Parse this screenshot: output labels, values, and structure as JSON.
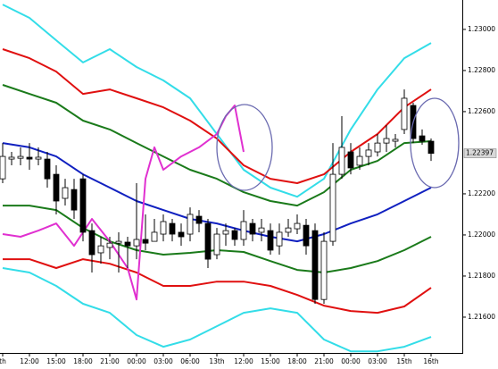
{
  "chart_data": {
    "type": "candlestick",
    "xlim": [
      -0.3,
      51.5
    ],
    "ylim": [
      1.21426,
      1.23143
    ],
    "yticks": [
      {
        "value": 1.23,
        "label": "1.23000"
      },
      {
        "value": 1.228,
        "label": "1.22800"
      },
      {
        "value": 1.226,
        "label": "1.22600"
      },
      {
        "value": 1.222,
        "label": "1.22200"
      },
      {
        "value": 1.22,
        "label": "1.22000"
      },
      {
        "value": 1.218,
        "label": "1.21800"
      },
      {
        "value": 1.216,
        "label": "1.21600"
      }
    ],
    "last_price": 1.22397,
    "xticks": [
      {
        "value": 0,
        "label": "th"
      },
      {
        "value": 3,
        "label": "12:00"
      },
      {
        "value": 6,
        "label": "15:00"
      },
      {
        "value": 9,
        "label": "18:00"
      },
      {
        "value": 12,
        "label": "21:00"
      },
      {
        "value": 15,
        "label": "00:00"
      },
      {
        "value": 18,
        "label": "03:00"
      },
      {
        "value": 21,
        "label": "06:00"
      },
      {
        "value": 24,
        "label": "13th"
      },
      {
        "value": 27,
        "label": "12:00"
      },
      {
        "value": 30,
        "label": "15:00"
      },
      {
        "value": 33,
        "label": "18:00"
      },
      {
        "value": 36,
        "label": "21:00"
      },
      {
        "value": 39,
        "label": "00:00"
      },
      {
        "value": 42,
        "label": "03:00"
      },
      {
        "value": 45,
        "label": "15th"
      },
      {
        "value": 48,
        "label": "16th"
      }
    ],
    "up_color": "#ffffff",
    "down_color": "#000000",
    "open": [
      1.22273,
      1.22369,
      1.22373,
      1.22378,
      1.22369,
      1.22369,
      1.22295,
      1.22178,
      1.22221,
      1.22273,
      1.22021,
      1.21913,
      1.21939,
      1.2196,
      1.21965,
      1.21947,
      1.21978,
      1.21969,
      1.22004,
      1.22056,
      1.22013,
      1.22004,
      1.22091,
      1.22056,
      1.21904,
      1.22004,
      1.22021,
      1.21978,
      1.22056,
      1.22013,
      1.22021,
      1.21947,
      1.22013,
      1.2203,
      1.22047,
      1.22021,
      1.21686,
      1.21969,
      1.22295,
      1.22404,
      1.22339,
      1.22382,
      1.22404,
      1.22447,
      1.22456,
      1.22513,
      1.2263,
      1.22482,
      1.22456
    ],
    "high": [
      1.22447,
      1.22404,
      1.22426,
      1.22447,
      1.22426,
      1.22404,
      1.22339,
      1.22273,
      1.22273,
      1.22295,
      1.22056,
      1.21991,
      1.21991,
      1.22013,
      1.21991,
      1.22252,
      1.221,
      1.22078,
      1.221,
      1.22078,
      1.22056,
      1.22134,
      1.22121,
      1.22078,
      1.22034,
      1.22056,
      1.22034,
      1.22121,
      1.22078,
      1.22078,
      1.22056,
      1.22056,
      1.22078,
      1.221,
      1.22078,
      1.22056,
      1.22013,
      1.22447,
      1.22578,
      1.22447,
      1.22426,
      1.22447,
      1.22491,
      1.22534,
      1.22491,
      1.22708,
      1.22643,
      1.22513,
      1.22469
    ],
    "low": [
      1.22252,
      1.22339,
      1.22339,
      1.22317,
      1.22339,
      1.2223,
      1.221,
      1.22143,
      1.22078,
      1.21969,
      1.21817,
      1.2186,
      1.21882,
      1.21817,
      1.21839,
      1.21882,
      1.21926,
      1.21969,
      1.21969,
      1.21969,
      1.21947,
      1.21969,
      1.22013,
      1.21839,
      1.21882,
      1.21947,
      1.21947,
      1.21947,
      1.21969,
      1.21969,
      1.21904,
      1.21904,
      1.21991,
      1.22004,
      1.21904,
      1.21665,
      1.21665,
      1.21947,
      1.22273,
      1.22295,
      1.22317,
      1.22339,
      1.22382,
      1.22404,
      1.22426,
      1.22491,
      1.22447,
      1.22439,
      1.2236
    ],
    "close": [
      1.22382,
      1.22378,
      1.22382,
      1.22369,
      1.22378,
      1.22273,
      1.22165,
      1.2223,
      1.22121,
      1.22013,
      1.21904,
      1.21947,
      1.2196,
      1.21969,
      1.21947,
      1.21978,
      1.2196,
      1.22013,
      1.22065,
      1.22004,
      1.21991,
      1.221,
      1.22056,
      1.21882,
      1.22004,
      1.22021,
      1.21978,
      1.22065,
      1.22004,
      1.22034,
      1.21926,
      1.22013,
      1.22034,
      1.22056,
      1.21947,
      1.21686,
      1.21969,
      1.22295,
      1.22426,
      1.22326,
      1.22382,
      1.22413,
      1.22447,
      1.22469,
      1.22465,
      1.22665,
      1.22469,
      1.22456,
      1.22397
    ],
    "lines": [
      {
        "color": "#33dde8",
        "x": [
          0,
          3,
          6,
          9,
          12,
          15,
          18,
          21,
          24,
          27,
          30,
          33,
          36,
          39,
          42,
          45,
          48
        ],
        "values": [
          1.23121,
          1.23056,
          1.22947,
          1.22839,
          1.22904,
          1.22817,
          1.22752,
          1.22665,
          1.22491,
          1.22317,
          1.2223,
          1.22186,
          1.22273,
          1.22513,
          1.22708,
          1.2286,
          1.22934
        ]
      },
      {
        "color": "#e01010",
        "x": [
          0,
          3,
          6,
          9,
          12,
          15,
          18,
          21,
          24,
          27,
          30,
          33,
          36,
          39,
          42,
          45,
          48
        ],
        "values": [
          1.22904,
          1.2286,
          1.22795,
          1.22686,
          1.22708,
          1.22665,
          1.22621,
          1.22556,
          1.22469,
          1.22339,
          1.22273,
          1.22252,
          1.22295,
          1.22404,
          1.22491,
          1.22621,
          1.22708
        ]
      },
      {
        "color": "#1a7a1a",
        "x": [
          0,
          3,
          6,
          9,
          12,
          15,
          18,
          21,
          24,
          27,
          30,
          33,
          36,
          39,
          42,
          45,
          48
        ],
        "values": [
          1.2273,
          1.22686,
          1.22643,
          1.22556,
          1.22513,
          1.22447,
          1.22382,
          1.22317,
          1.22273,
          1.22208,
          1.22165,
          1.22143,
          1.22208,
          1.22317,
          1.2236,
          1.22447,
          1.22456
        ]
      },
      {
        "color": "#1020c0",
        "x": [
          0,
          3,
          6,
          9,
          12,
          15,
          18,
          21,
          24,
          27,
          30,
          33,
          36,
          39,
          42,
          45,
          48
        ],
        "values": [
          1.22447,
          1.22426,
          1.22382,
          1.22295,
          1.2223,
          1.22165,
          1.22121,
          1.22078,
          1.22056,
          1.22021,
          1.21991,
          1.21969,
          1.22004,
          1.22056,
          1.221,
          1.22165,
          1.2223
        ]
      },
      {
        "color": "#1a7a1a",
        "x": [
          0,
          3,
          6,
          9,
          12,
          15,
          18,
          21,
          24,
          27,
          30,
          33,
          36,
          39,
          42,
          45,
          48
        ],
        "values": [
          1.22143,
          1.22143,
          1.22121,
          1.22034,
          1.21969,
          1.21926,
          1.21904,
          1.21913,
          1.21926,
          1.21917,
          1.21873,
          1.2183,
          1.21817,
          1.21839,
          1.21873,
          1.21926,
          1.21991
        ]
      },
      {
        "color": "#e01010",
        "x": [
          0,
          3,
          6,
          9,
          12,
          15,
          18,
          21,
          24,
          27,
          30,
          33,
          36,
          39,
          42,
          45,
          48
        ],
        "values": [
          1.21882,
          1.21882,
          1.21839,
          1.21882,
          1.2186,
          1.21817,
          1.21752,
          1.21752,
          1.21773,
          1.21773,
          1.21752,
          1.21708,
          1.21656,
          1.2163,
          1.21621,
          1.21652,
          1.21743
        ]
      },
      {
        "color": "#33dde8",
        "x": [
          0,
          3,
          6,
          9,
          12,
          15,
          18,
          21,
          24,
          27,
          30,
          33,
          36,
          39,
          42,
          45,
          48
        ],
        "values": [
          1.21839,
          1.21817,
          1.21752,
          1.21665,
          1.21621,
          1.21513,
          1.21456,
          1.21491,
          1.21556,
          1.21621,
          1.21643,
          1.21621,
          1.21491,
          1.21434,
          1.21434,
          1.21456,
          1.21504
        ]
      },
      {
        "color": "#e030d0",
        "x": [
          0,
          2,
          4,
          6,
          8,
          10,
          12,
          14,
          15,
          16,
          17,
          18,
          20,
          22,
          24,
          25,
          26,
          27
        ],
        "values": [
          1.22004,
          1.21991,
          1.22021,
          1.22056,
          1.21947,
          1.22078,
          1.21969,
          1.21839,
          1.21686,
          1.22273,
          1.22426,
          1.22317,
          1.22382,
          1.22426,
          1.22491,
          1.22578,
          1.2263,
          1.22404
        ]
      }
    ]
  }
}
